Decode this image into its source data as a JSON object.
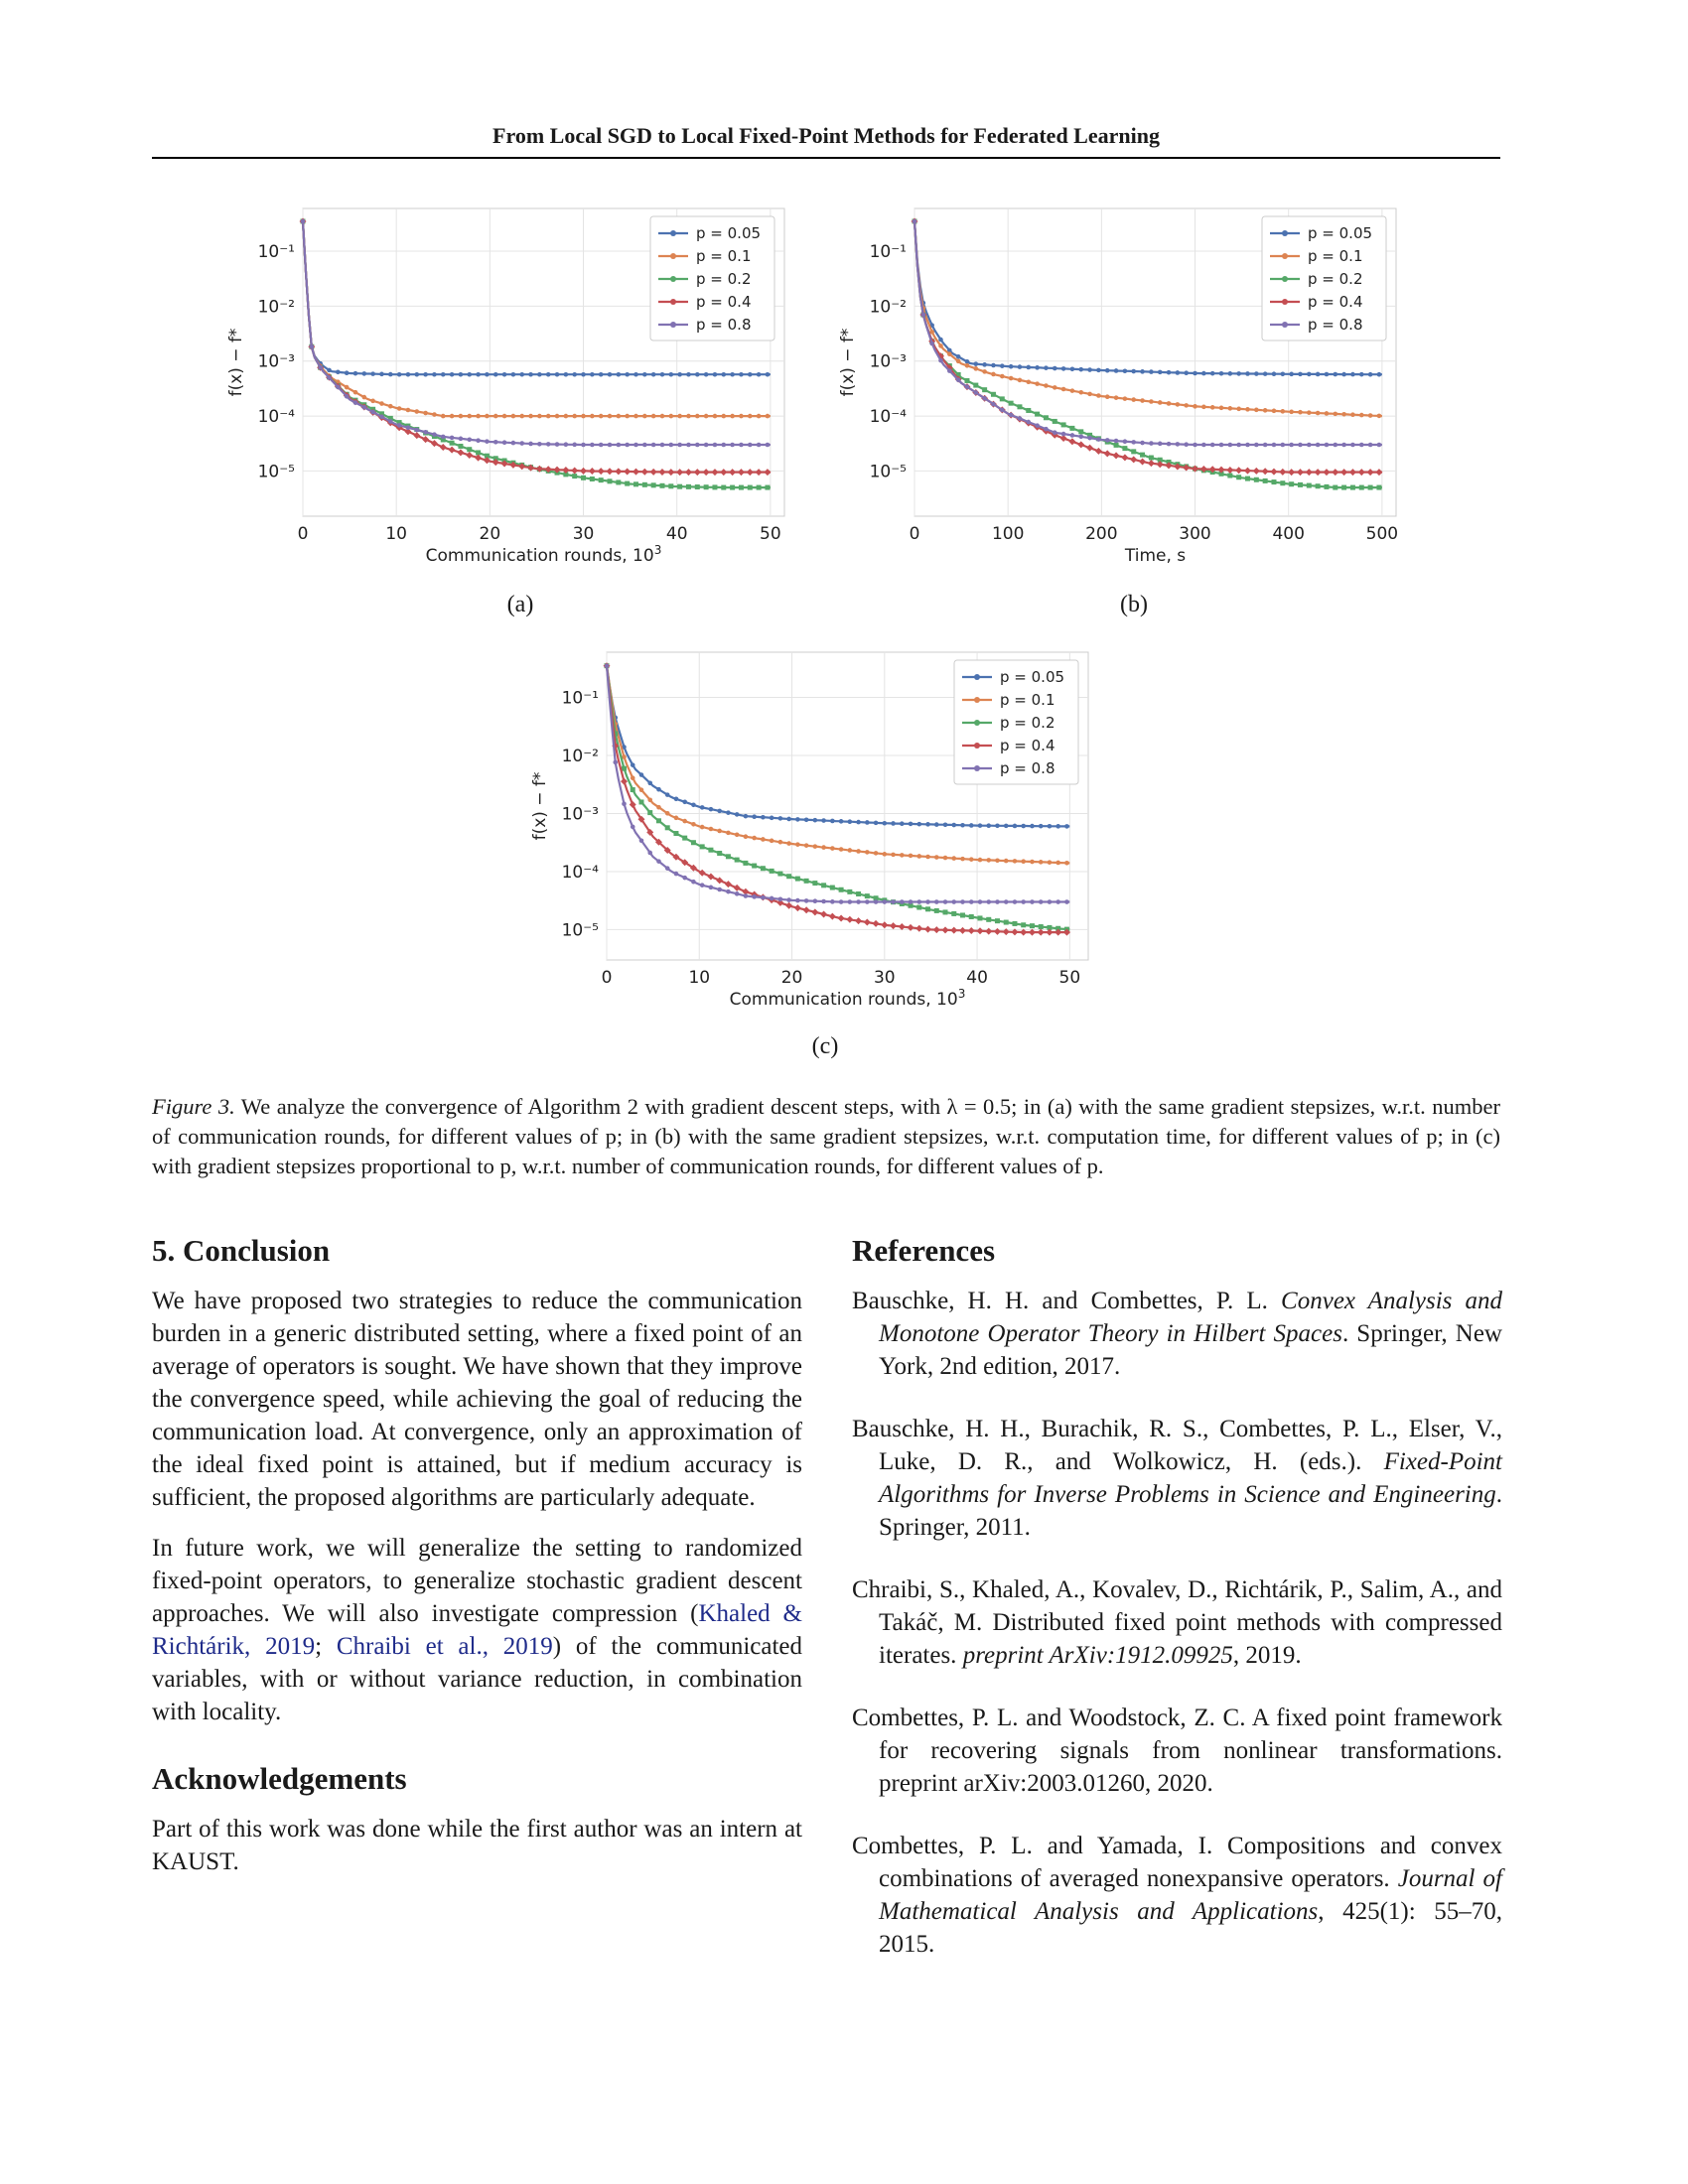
{
  "header": {
    "title": "From Local SGD to Local Fixed-Point Methods for Federated Learning"
  },
  "figure": {
    "subfigures": [
      {
        "label": "(a)",
        "xlabel": "Communication rounds, 10",
        "xlabel_sup": "3",
        "ylabel": "f(x) − f*"
      },
      {
        "label": "(b)",
        "xlabel": "Time, s",
        "xlabel_sup": "",
        "ylabel": "f(x) − f*"
      },
      {
        "label": "(c)",
        "xlabel": "Communication rounds, 10",
        "xlabel_sup": "3",
        "ylabel": "f(x) − f*"
      }
    ],
    "caption": {
      "label": "Figure 3.",
      "text": " We analyze the convergence of Algorithm 2 with gradient descent steps, with λ = 0.5; in (a) with the same gradient stepsizes, w.r.t. number of communication rounds, for different values of p; in (b) with the same gradient stepsizes, w.r.t. computation time, for different values of p; in (c) with gradient stepsizes proportional to p, w.r.t. number of communication rounds, for different values of p."
    }
  },
  "chart_data": [
    {
      "type": "line",
      "xlabel": "Communication rounds, 10^3",
      "ylabel": "f(x) − f*",
      "yscale": "log",
      "xlim": [
        0,
        51.5
      ],
      "ylim": [
        1.5e-06,
        0.6
      ],
      "xticks": [
        0,
        10,
        20,
        30,
        40,
        50
      ],
      "yticks": [
        0.1,
        0.01,
        0.001,
        0.0001,
        1e-05
      ],
      "ytick_labels": [
        "10⁻¹",
        "10⁻²",
        "10⁻³",
        "10⁻⁴",
        "10⁻⁵"
      ],
      "grid": true,
      "legend": "top-right",
      "series": [
        {
          "name": "p = 0.05",
          "color": "#4c72b0",
          "marker": "dot",
          "x": [
            0,
            0.2,
            0.5,
            1,
            2,
            3,
            5,
            10,
            20,
            30,
            40,
            50
          ],
          "y": [
            0.35,
            0.1,
            0.012,
            0.0014,
            0.00085,
            0.00065,
            0.0006,
            0.00057,
            0.00057,
            0.00057,
            0.00057,
            0.00057
          ]
        },
        {
          "name": "p = 0.1",
          "color": "#dd8452",
          "marker": "dot",
          "x": [
            0,
            0.2,
            0.5,
            1,
            2,
            3,
            5,
            7,
            10,
            15,
            20,
            30,
            40,
            50
          ],
          "y": [
            0.35,
            0.1,
            0.012,
            0.0014,
            0.00075,
            0.0005,
            0.00031,
            0.0002,
            0.00014,
            0.0001,
            0.0001,
            0.0001,
            0.0001,
            0.0001
          ]
        },
        {
          "name": "p = 0.2",
          "color": "#55a868",
          "marker": "square",
          "x": [
            0,
            0.2,
            0.5,
            1,
            2,
            5,
            10,
            15,
            20,
            25,
            30,
            35,
            40,
            45,
            50
          ],
          "y": [
            0.35,
            0.1,
            0.012,
            0.0014,
            0.0007,
            0.00022,
            8e-05,
            3.7e-05,
            1.8e-05,
            1.1e-05,
            7.5e-06,
            5.8e-06,
            5.2e-06,
            5e-06,
            5e-06
          ]
        },
        {
          "name": "p = 0.4",
          "color": "#c44e52",
          "marker": "diamond",
          "x": [
            0,
            0.2,
            0.5,
            1,
            2,
            5,
            10,
            15,
            20,
            25,
            30,
            40,
            50
          ],
          "y": [
            0.35,
            0.1,
            0.012,
            0.0014,
            0.0007,
            0.00021,
            6.5e-05,
            2.7e-05,
            1.5e-05,
            1.1e-05,
            1e-05,
            9.5e-06,
            9.5e-06
          ]
        },
        {
          "name": "p = 0.8",
          "color": "#8172b2",
          "marker": "dot",
          "x": [
            0,
            0.2,
            0.5,
            1,
            2,
            5,
            10,
            15,
            20,
            25,
            30,
            40,
            50
          ],
          "y": [
            0.35,
            0.1,
            0.012,
            0.0014,
            0.0007,
            0.0002,
            7e-05,
            4.2e-05,
            3.4e-05,
            3.1e-05,
            3e-05,
            3e-05,
            3e-05
          ]
        }
      ]
    },
    {
      "type": "line",
      "xlabel": "Time, s",
      "ylabel": "f(x) − f*",
      "yscale": "log",
      "xlim": [
        0,
        515
      ],
      "ylim": [
        1.5e-06,
        0.6
      ],
      "xticks": [
        0,
        100,
        200,
        300,
        400,
        500
      ],
      "yticks": [
        0.1,
        0.01,
        0.001,
        0.0001,
        1e-05
      ],
      "ytick_labels": [
        "10⁻¹",
        "10⁻²",
        "10⁻³",
        "10⁻⁴",
        "10⁻⁵"
      ],
      "grid": true,
      "legend": "top-right",
      "series": [
        {
          "name": "p = 0.05",
          "color": "#4c72b0",
          "marker": "dot",
          "x": [
            0,
            2,
            5,
            10,
            20,
            30,
            40,
            60,
            100,
            200,
            300,
            400,
            500
          ],
          "y": [
            0.35,
            0.1,
            0.03,
            0.01,
            0.004,
            0.0022,
            0.0014,
            0.0009,
            0.0008,
            0.00068,
            0.0006,
            0.00058,
            0.00057
          ]
        },
        {
          "name": "p = 0.1",
          "color": "#dd8452",
          "marker": "dot",
          "x": [
            0,
            2,
            5,
            10,
            20,
            30,
            50,
            80,
            100,
            150,
            200,
            300,
            400,
            500
          ],
          "y": [
            0.35,
            0.1,
            0.025,
            0.008,
            0.003,
            0.0017,
            0.0009,
            0.0006,
            0.0005,
            0.00033,
            0.00023,
            0.00015,
            0.00012,
            0.0001
          ]
        },
        {
          "name": "p = 0.2",
          "color": "#55a868",
          "marker": "square",
          "x": [
            0,
            2,
            5,
            10,
            20,
            30,
            50,
            100,
            150,
            200,
            250,
            300,
            350,
            400,
            450,
            500
          ],
          "y": [
            0.35,
            0.1,
            0.02,
            0.006,
            0.002,
            0.0011,
            0.0005,
            0.00018,
            8e-05,
            3.7e-05,
            1.8e-05,
            1.1e-05,
            7.5e-06,
            5.8e-06,
            5e-06,
            5e-06
          ]
        },
        {
          "name": "p = 0.4",
          "color": "#c44e52",
          "marker": "diamond",
          "x": [
            0,
            2,
            5,
            10,
            20,
            30,
            50,
            100,
            150,
            200,
            250,
            300,
            400,
            500
          ],
          "y": [
            0.35,
            0.1,
            0.02,
            0.006,
            0.002,
            0.0011,
            0.0004,
            0.00011,
            4.5e-05,
            2.2e-05,
            1.4e-05,
            1.1e-05,
            9.5e-06,
            9.5e-06
          ]
        },
        {
          "name": "p = 0.8",
          "color": "#8172b2",
          "marker": "dot",
          "x": [
            0,
            2,
            5,
            10,
            20,
            30,
            50,
            100,
            150,
            200,
            250,
            300,
            400,
            500
          ],
          "y": [
            0.35,
            0.1,
            0.02,
            0.006,
            0.0018,
            0.0009,
            0.0004,
            0.00011,
            5e-05,
            3.7e-05,
            3.2e-05,
            3e-05,
            3e-05,
            3e-05
          ]
        }
      ]
    },
    {
      "type": "line",
      "xlabel": "Communication rounds, 10^3",
      "ylabel": "f(x) − f*",
      "yscale": "log",
      "xlim": [
        0,
        52
      ],
      "ylim": [
        3e-06,
        0.6
      ],
      "xticks": [
        0,
        10,
        20,
        30,
        40,
        50
      ],
      "yticks": [
        0.1,
        0.01,
        0.001,
        0.0001,
        1e-05
      ],
      "ytick_labels": [
        "10⁻¹",
        "10⁻²",
        "10⁻³",
        "10⁻⁴",
        "10⁻⁵"
      ],
      "grid": true,
      "legend": "top-right",
      "series": [
        {
          "name": "p = 0.05",
          "color": "#4c72b0",
          "marker": "dot",
          "x": [
            0,
            0.5,
            1,
            2,
            3,
            5,
            7,
            10,
            15,
            20,
            30,
            40,
            50
          ],
          "y": [
            0.35,
            0.1,
            0.04,
            0.012,
            0.006,
            0.003,
            0.0019,
            0.0013,
            0.0009,
            0.0008,
            0.00068,
            0.00062,
            0.0006
          ]
        },
        {
          "name": "p = 0.1",
          "color": "#dd8452",
          "marker": "dot",
          "x": [
            0,
            0.5,
            1,
            2,
            3,
            5,
            7,
            10,
            15,
            20,
            30,
            40,
            50
          ],
          "y": [
            0.35,
            0.1,
            0.03,
            0.008,
            0.0035,
            0.0015,
            0.0009,
            0.0006,
            0.0004,
            0.0003,
            0.0002,
            0.00016,
            0.00014
          ]
        },
        {
          "name": "p = 0.2",
          "color": "#55a868",
          "marker": "square",
          "x": [
            0,
            0.5,
            1,
            2,
            3,
            5,
            7,
            10,
            15,
            20,
            25,
            30,
            35,
            40,
            45,
            50
          ],
          "y": [
            0.35,
            0.08,
            0.02,
            0.005,
            0.0022,
            0.0009,
            0.0005,
            0.00028,
            0.00014,
            8e-05,
            5e-05,
            3.2e-05,
            2.2e-05,
            1.6e-05,
            1.2e-05,
            1e-05
          ]
        },
        {
          "name": "p = 0.4",
          "color": "#c44e52",
          "marker": "diamond",
          "x": [
            0,
            0.5,
            1,
            2,
            3,
            5,
            7,
            10,
            15,
            20,
            25,
            30,
            35,
            40,
            45,
            50
          ],
          "y": [
            0.35,
            0.06,
            0.012,
            0.003,
            0.0012,
            0.0004,
            0.0002,
            0.0001,
            4.5e-05,
            2.5e-05,
            1.6e-05,
            1.2e-05,
            1e-05,
            9.5e-06,
            9e-06,
            9e-06
          ]
        },
        {
          "name": "p = 0.8",
          "color": "#8172b2",
          "marker": "dot",
          "x": [
            0,
            0.5,
            1,
            2,
            3,
            5,
            7,
            10,
            15,
            20,
            25,
            30,
            40,
            50
          ],
          "y": [
            0.35,
            0.04,
            0.006,
            0.0012,
            0.0005,
            0.00018,
            0.0001,
            6e-05,
            3.8e-05,
            3.2e-05,
            3e-05,
            3e-05,
            3e-05,
            3e-05
          ]
        }
      ]
    }
  ],
  "conclusion": {
    "heading": "5. Conclusion",
    "para1": "We have proposed two strategies to reduce the communication burden in a generic distributed setting, where a fixed point of an average of operators is sought. We have shown that they improve the convergence speed, while achieving the goal of reducing the communication load. At convergence, only an approximation of the ideal fixed point is attained, but if medium accuracy is sufficient, the proposed algorithms are particularly adequate.",
    "para2_start": "In future work, we will generalize the setting to randomized fixed-point operators, to generalize stochastic gradient descent approaches. We will also investigate compression (",
    "cite1": "Khaled & Richtárik",
    "cite1_year": "2019",
    "cite_sep": "; ",
    "cite2": "Chraibi et al.",
    "cite2_year": "2019",
    "para2_end": ") of the communicated variables, with or without variance reduction, in combination with locality."
  },
  "acknowledgements": {
    "heading": "Acknowledgements",
    "text": "Part of this work was done while the first author was an intern at KAUST."
  },
  "references": {
    "heading": "References",
    "items": [
      {
        "pre": "Bauschke, H. H. and Combettes, P. L. ",
        "ital": "Convex Analysis and Monotone Operator Theory in Hilbert Spaces",
        "post": ". Springer, New York, 2nd edition, 2017."
      },
      {
        "pre": "Bauschke, H. H., Burachik, R. S., Combettes, P. L., Elser, V., Luke, D. R., and Wolkowicz, H. (eds.). ",
        "ital": "Fixed-Point Algorithms for Inverse Problems in Science and Engineering",
        "post": ". Springer, 2011."
      },
      {
        "pre": "Chraibi, S., Khaled, A., Kovalev, D., Richtárik, P., Salim, A., and Takáč, M. Distributed fixed point methods with compressed iterates. ",
        "ital": "preprint ArXiv:1912.09925",
        "post": ", 2019."
      },
      {
        "pre": "Combettes, P. L. and Woodstock, Z. C. A fixed point framework for recovering signals from nonlinear transformations. preprint arXiv:2003.01260, 2020.",
        "ital": "",
        "post": ""
      },
      {
        "pre": "Combettes, P. L. and Yamada, I. Compositions and convex combinations of averaged nonexpansive operators. ",
        "ital": "Journal of Mathematical Analysis and Applications",
        "post": ", 425(1): 55–70, 2015."
      }
    ]
  }
}
